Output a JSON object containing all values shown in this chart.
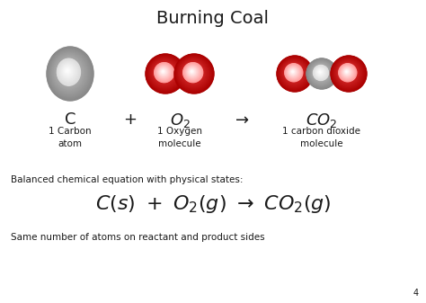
{
  "title": "Burning Coal",
  "title_fontsize": 14,
  "title_fontweight": "normal",
  "bg_color": "#ffffff",
  "text_color": "#1a1a1a",
  "gray_dark": "#888888",
  "gray_mid": "#aaaaaa",
  "gray_light": "#dddddd",
  "red_dark": "#aa0000",
  "red_mid": "#cc2222",
  "red_light": "#ff9999",
  "red_white": "#ffdddd",
  "desc_C": "1 Carbon\natom",
  "desc_O2": "1 Oxygen\nmolecule",
  "desc_CO2": "1 carbon dioxide\nmolecule",
  "balanced_label": "Balanced chemical equation with physical states:",
  "bottom_note": "Same number of atoms on reactant and product sides",
  "page_num": "4",
  "label_fontsize": 13,
  "desc_fontsize": 7.5,
  "eq_fontsize": 16,
  "note_fontsize": 7.5,
  "balanced_fontsize": 7.5
}
